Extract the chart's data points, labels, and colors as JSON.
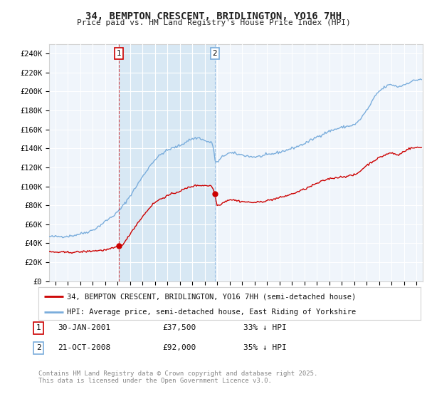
{
  "title": "34, BEMPTON CRESCENT, BRIDLINGTON, YO16 7HH",
  "subtitle": "Price paid vs. HM Land Registry's House Price Index (HPI)",
  "ytick_labels": [
    "£0",
    "£20K",
    "£40K",
    "£60K",
    "£80K",
    "£100K",
    "£120K",
    "£140K",
    "£160K",
    "£180K",
    "£200K",
    "£220K",
    "£240K"
  ],
  "ytick_values": [
    0,
    20000,
    40000,
    60000,
    80000,
    100000,
    120000,
    140000,
    160000,
    180000,
    200000,
    220000,
    240000
  ],
  "hpi_color": "#7aaddc",
  "price_color": "#cc0000",
  "vline1_color": "#cc0000",
  "vline2_color": "#7aaddc",
  "shade_color": "#d8e8f4",
  "background_color": "#f0f5fb",
  "legend_label_red": "34, BEMPTON CRESCENT, BRIDLINGTON, YO16 7HH (semi-detached house)",
  "legend_label_blue": "HPI: Average price, semi-detached house, East Riding of Yorkshire",
  "annotation1_date": "30-JAN-2001",
  "annotation1_price": "£37,500",
  "annotation1_hpi": "33% ↓ HPI",
  "annotation2_date": "21-OCT-2008",
  "annotation2_price": "£92,000",
  "annotation2_hpi": "35% ↓ HPI",
  "sale1_year": 2001.08,
  "sale1_price": 37500,
  "sale2_year": 2008.8,
  "sale2_price": 92000,
  "footer": "Contains HM Land Registry data © Crown copyright and database right 2025.\nThis data is licensed under the Open Government Licence v3.0.",
  "xmin": 1995.5,
  "xmax": 2025.5,
  "ymin": 0,
  "ymax": 250000
}
